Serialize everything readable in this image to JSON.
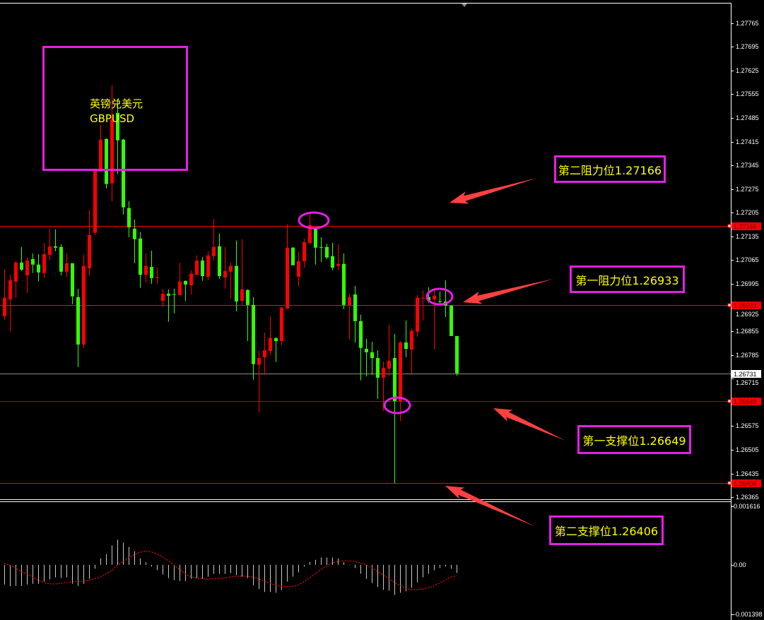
{
  "colors": {
    "background": "#000000",
    "bull_candle": "#ff0000",
    "bear_candle": "#33ff00",
    "level_line": "#ff0000",
    "current_price_line": "#8c8c8c",
    "annotation_border": "#e61ee6",
    "annotation_text": "#ffff00",
    "arrow": "#ff4040",
    "macd_histogram": "#c8c8c8",
    "macd_signal": "#ff0000"
  },
  "symbol_box": {
    "name_cn": "英镑兑美元",
    "symbol": "GBPUSD"
  },
  "annotations": [
    {
      "label": "第二阻力位1.27166",
      "price": 1.27166
    },
    {
      "label": "第一阻力位1.26933",
      "price": 1.26933
    },
    {
      "label": "第一支撑位1.26649",
      "price": 1.26649
    },
    {
      "label": "第二支撑位1.26406",
      "price": 1.26406
    }
  ],
  "chart_data": [
    {
      "type": "candlestick",
      "symbol": "GBPUSD",
      "ohlc_format": [
        "open",
        "high",
        "low",
        "close"
      ],
      "ylim": [
        1.26359,
        1.27825
      ],
      "yticks": [
        "1.27765",
        "1.27695",
        "1.27625",
        "1.27555",
        "1.27485",
        "1.27415",
        "1.27345",
        "1.27275",
        "1.27205",
        "1.27135",
        "1.27065",
        "1.26995",
        "1.26925",
        "1.26855",
        "1.26785",
        "1.26715",
        "1.26575",
        "1.26505",
        "1.26435",
        "1.26365"
      ],
      "current_price": 1.26731,
      "level_lines": [
        1.27166,
        1.26933,
        1.26649,
        1.26406
      ],
      "price_tags": [
        {
          "text": "1.27166",
          "price": 1.27166,
          "style": "level"
        },
        {
          "text": "1.26933",
          "price": 1.26933,
          "style": "level"
        },
        {
          "text": "1.26731",
          "price": 1.26731,
          "style": "current"
        },
        {
          "text": "1.26649",
          "price": 1.26649,
          "style": "level"
        },
        {
          "text": "1.26406",
          "price": 1.26406,
          "style": "level"
        }
      ],
      "grid": false,
      "candles": [
        [
          1.26899,
          1.27039,
          1.26889,
          1.26954
        ],
        [
          1.26949,
          1.27022,
          1.26854,
          1.27006
        ],
        [
          1.27002,
          1.27062,
          1.26954,
          1.27058
        ],
        [
          1.27058,
          1.27104,
          1.27033,
          1.27037
        ],
        [
          1.2702,
          1.27073,
          1.26968,
          1.27064
        ],
        [
          1.27068,
          1.27085,
          1.27027,
          1.27052
        ],
        [
          1.27052,
          1.27083,
          1.27002,
          1.27029
        ],
        [
          1.27027,
          1.27116,
          1.27012,
          1.27083
        ],
        [
          1.27081,
          1.27158,
          1.27066,
          1.27106
        ],
        [
          1.27106,
          1.27156,
          1.27091,
          1.27102
        ],
        [
          1.27104,
          1.27112,
          1.2702,
          1.27031
        ],
        [
          1.27031,
          1.27085,
          1.27014,
          1.27056
        ],
        [
          1.27056,
          1.27056,
          1.26935,
          1.26958
        ],
        [
          1.26956,
          1.26981,
          1.26749,
          1.26816
        ],
        [
          1.26816,
          1.27081,
          1.26806,
          1.27048
        ],
        [
          1.27041,
          1.27214,
          1.2702,
          1.27139
        ],
        [
          1.27146,
          1.27335,
          1.27139,
          1.27329
        ],
        [
          1.27327,
          1.27465,
          1.27327,
          1.27421
        ],
        [
          1.27423,
          1.27425,
          1.27277,
          1.2729
        ],
        [
          1.27292,
          1.27582,
          1.27239,
          1.27481
        ],
        [
          1.275,
          1.27542,
          1.27319,
          1.27419
        ],
        [
          1.27421,
          1.27423,
          1.272,
          1.27221
        ],
        [
          1.27219,
          1.27239,
          1.27133,
          1.27162
        ],
        [
          1.27158,
          1.27185,
          1.27056,
          1.27127
        ],
        [
          1.27129,
          1.27148,
          1.26983,
          1.27022
        ],
        [
          1.27022,
          1.27085,
          1.27,
          1.27048
        ],
        [
          1.27045,
          1.27093,
          1.26995,
          1.27012
        ],
        [
          1.27014,
          1.27043,
          1.26995,
          1.27015
        ],
        [
          1.26945,
          1.26981,
          1.26927,
          1.26966
        ],
        [
          1.26966,
          1.26979,
          1.26883,
          1.2696
        ],
        [
          1.26965,
          1.26981,
          1.26908,
          1.26964
        ],
        [
          1.26962,
          1.27058,
          1.2696,
          1.27002
        ],
        [
          1.27004,
          1.27004,
          1.26945,
          1.26993
        ],
        [
          1.26991,
          1.27035,
          1.26964,
          1.27025
        ],
        [
          1.27022,
          1.27079,
          1.27022,
          1.27064
        ],
        [
          1.27064,
          1.27075,
          1.27004,
          1.27018
        ],
        [
          1.27016,
          1.27091,
          1.27006,
          1.27079
        ],
        [
          1.27077,
          1.27187,
          1.27064,
          1.27104
        ],
        [
          1.27106,
          1.27144,
          1.2701,
          1.27018
        ],
        [
          1.27014,
          1.27104,
          1.26981,
          1.27033
        ],
        [
          1.27031,
          1.27058,
          1.26952,
          1.27048
        ],
        [
          1.27048,
          1.27123,
          1.26914,
          1.26943
        ],
        [
          1.26945,
          1.27127,
          1.26933,
          1.26979
        ],
        [
          1.26977,
          1.26979,
          1.26826,
          1.26933
        ],
        [
          1.26933,
          1.26956,
          1.26712,
          1.26758
        ],
        [
          1.26756,
          1.26797,
          1.26616,
          1.26776
        ],
        [
          1.26778,
          1.26851,
          1.26731,
          1.26799
        ],
        [
          1.26797,
          1.26899,
          1.26785,
          1.26835
        ],
        [
          1.26835,
          1.26837,
          1.26764,
          1.26826
        ],
        [
          1.26826,
          1.26927,
          1.26814,
          1.26925
        ],
        [
          1.26922,
          1.27171,
          1.26922,
          1.27102
        ],
        [
          1.27102,
          1.27104,
          1.2705,
          1.2705
        ],
        [
          1.27016,
          1.27091,
          1.26987,
          1.27062
        ],
        [
          1.27062,
          1.27129,
          1.27043,
          1.27118
        ],
        [
          1.27116,
          1.27208,
          1.27112,
          1.27169
        ],
        [
          1.2716,
          1.2716,
          1.27052,
          1.27102
        ],
        [
          1.27104,
          1.27133,
          1.2706,
          1.27103
        ],
        [
          1.27104,
          1.27114,
          1.27068,
          1.27073
        ],
        [
          1.27077,
          1.27116,
          1.27035,
          1.27043
        ],
        [
          1.27048,
          1.27112,
          1.27035,
          1.27054
        ],
        [
          1.27054,
          1.27085,
          1.2692,
          1.26933
        ],
        [
          1.26933,
          1.26966,
          1.26831,
          1.26956
        ],
        [
          1.26964,
          1.26989,
          1.26822,
          1.26885
        ],
        [
          1.26885,
          1.26904,
          1.2671,
          1.26806
        ],
        [
          1.26803,
          1.26833,
          1.26722,
          1.26793
        ],
        [
          1.26793,
          1.26824,
          1.26726,
          1.26776
        ],
        [
          1.26776,
          1.26799,
          1.26655,
          1.26718
        ],
        [
          1.26718,
          1.26766,
          1.2662,
          1.26747
        ],
        [
          1.26745,
          1.26874,
          1.26722,
          1.26768
        ],
        [
          1.26776,
          1.26847,
          1.26406,
          1.26649
        ],
        [
          1.26649,
          1.26826,
          1.26589,
          1.26822
        ],
        [
          1.26822,
          1.26887,
          1.26778,
          1.26803
        ],
        [
          1.26801,
          1.26864,
          1.26731,
          1.26856
        ],
        [
          1.26854,
          1.26962,
          1.26839,
          1.26954
        ],
        [
          1.26953,
          1.26975,
          1.26887,
          1.26954
        ],
        [
          1.26956,
          1.26985,
          1.26939,
          1.26947
        ],
        [
          1.26949,
          1.26983,
          1.26801,
          1.2696
        ],
        [
          1.26944,
          1.26972,
          1.26937,
          1.26943
        ],
        [
          1.26943,
          1.27006,
          1.26897,
          1.26931
        ],
        [
          1.26931,
          1.26931,
          1.26841,
          1.26841
        ],
        [
          1.26841,
          1.26841,
          1.26724,
          1.26731
        ]
      ]
    },
    {
      "type": "bar",
      "indicator": "MACD",
      "ylim": [
        -0.00154,
        0.00175
      ],
      "yticks": [
        {
          "text": "0.001616",
          "value": 0.001616
        },
        {
          "text": "0.00",
          "value": 0
        },
        {
          "text": "-0.001398",
          "value": -0.001398
        }
      ],
      "histogram": [
        -0.00055,
        -0.0006,
        -0.00059,
        -0.00059,
        -0.00055,
        -0.00053,
        -0.00053,
        -0.00047,
        -0.00041,
        -0.00035,
        -0.00037,
        -0.00035,
        -0.00053,
        -0.00059,
        -0.00053,
        -0.00039,
        -0.00011,
        0.00018,
        0.0003,
        0.00054,
        0.0007,
        0.00062,
        0.0005,
        0.00038,
        0.00018,
        7e-05,
        -5e-05,
        -0.00015,
        -0.00027,
        -0.00037,
        -0.00043,
        -0.00045,
        -0.00045,
        -0.00039,
        -0.00037,
        -0.00039,
        -0.00033,
        -0.00025,
        -0.00025,
        -0.00025,
        -0.00023,
        -0.00029,
        -0.00033,
        -0.00037,
        -0.00057,
        -0.00068,
        -0.00076,
        -0.00076,
        -0.00078,
        -0.0007,
        -0.00047,
        -0.00033,
        -0.00021,
        -5e-05,
        8e-05,
        0.00014,
        0.0002,
        0.0002,
        0.0002,
        0.00018,
        7e-05,
        -1e-05,
        -9e-05,
        -0.00025,
        -0.00039,
        -0.00051,
        -0.00062,
        -0.0007,
        -0.00072,
        -0.00084,
        -0.00078,
        -0.00074,
        -0.00064,
        -0.00049,
        -0.00035,
        -0.00025,
        -0.00015,
        -9e-05,
        -5e-05,
        -0.00011,
        -0.00023
      ],
      "signal": [
        5e-05,
        -3e-05,
        -7e-05,
        -0.0002,
        -0.00025,
        -0.00034,
        -0.00043,
        -0.00049,
        -0.00053,
        -0.00054,
        -0.00051,
        -0.0005,
        -0.00047,
        -0.00046,
        -0.00046,
        -0.00043,
        -0.00039,
        -0.00034,
        -0.00025,
        -0.00016,
        -1e-05,
        9e-05,
        0.0002,
        0.00028,
        0.00035,
        0.00039,
        0.00036,
        0.00031,
        0.00022,
        0.00012,
        -1e-05,
        -0.00013,
        -0.00025,
        -0.00033,
        -0.00037,
        -0.00039,
        -0.0004,
        -0.00039,
        -0.00038,
        -0.00037,
        -0.00034,
        -0.00032,
        -0.00031,
        -0.00032,
        -0.00034,
        -0.00039,
        -0.00046,
        -0.00051,
        -0.00057,
        -0.0006,
        -0.00061,
        -0.0006,
        -0.00056,
        -0.00047,
        -0.00036,
        -0.00025,
        -0.00013,
        -3e-05,
        5e-05,
        9e-05,
        0.00011,
        0.00011,
        0.0001,
        5e-05,
        0.0,
        -8e-05,
        -0.00018,
        -0.00028,
        -0.00039,
        -0.00049,
        -0.00058,
        -0.00066,
        -0.00069,
        -0.00069,
        -0.00068,
        -0.00064,
        -0.00059,
        -0.00051,
        -0.00043,
        -0.00034,
        -0.0003
      ]
    }
  ]
}
